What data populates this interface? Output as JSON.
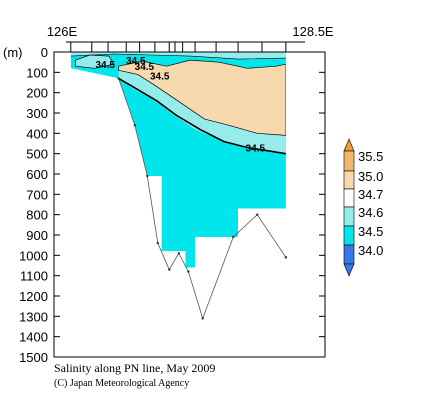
{
  "chart_data": {
    "type": "contour-section",
    "title": "Salinity along PN line, May 2009",
    "credit": "(C) Japan Meteorological Agency",
    "x_axis": {
      "ticks": [
        "126E",
        "128.5E"
      ],
      "xlim": [
        126.0,
        128.5
      ]
    },
    "y_axis": {
      "unit_label": "(m)",
      "ylim": [
        0,
        1500
      ],
      "inverted": true,
      "ticks": [
        0,
        100,
        200,
        300,
        400,
        500,
        600,
        700,
        800,
        900,
        1000,
        1100,
        1200,
        1300,
        1400,
        1500
      ]
    },
    "station_longitudes": [
      126.05,
      126.27,
      126.44,
      126.63,
      126.77,
      126.93,
      127.08,
      127.14,
      127.22,
      127.35,
      127.57,
      127.8,
      128.05,
      128.3
    ],
    "contour_labels": [
      {
        "text": "34.5",
        "lon": 126.41,
        "depth": 60
      },
      {
        "text": "34.5",
        "lon": 126.73,
        "depth": 40
      },
      {
        "text": "34.5",
        "lon": 126.82,
        "depth": 70
      },
      {
        "text": "34.5",
        "lon": 126.98,
        "depth": 115
      },
      {
        "text": "34.5",
        "lon": 127.98,
        "depth": 470
      }
    ],
    "colorbar": {
      "bins": [
        {
          "range": [
            35.5,
            36.0
          ],
          "color": "#f09d3a"
        },
        {
          "range": [
            35.0,
            35.5
          ],
          "color": "#f2b96d"
        },
        {
          "range": [
            34.7,
            35.0
          ],
          "color": "#f7d9ad"
        },
        {
          "range": [
            34.6,
            34.7
          ],
          "color": "#ffffff"
        },
        {
          "range": [
            34.5,
            34.6
          ],
          "color": "#96ecea"
        },
        {
          "range": [
            34.0,
            34.5
          ],
          "color": "#00e6ea"
        },
        {
          "range": [
            33.0,
            34.0
          ],
          "color": "#3b78e7"
        }
      ],
      "labels": [
        "35.5",
        "35.0",
        "34.7",
        "34.6",
        "34.5",
        "34.0"
      ]
    },
    "bottom_profile": [
      {
        "lon": 126.55,
        "depth": 130
      },
      {
        "lon": 126.72,
        "depth": 360
      },
      {
        "lon": 126.85,
        "depth": 610
      },
      {
        "lon": 126.96,
        "depth": 940
      },
      {
        "lon": 127.08,
        "depth": 1070
      },
      {
        "lon": 127.18,
        "depth": 990
      },
      {
        "lon": 127.28,
        "depth": 1080
      },
      {
        "lon": 127.43,
        "depth": 1310
      },
      {
        "lon": 127.75,
        "depth": 910
      },
      {
        "lon": 128.0,
        "depth": 800
      },
      {
        "lon": 128.3,
        "depth": 1010
      }
    ],
    "high_salinity_core": [
      {
        "lon": 126.55,
        "depth": 70
      },
      {
        "lon": 126.8,
        "depth": 45
      },
      {
        "lon": 127.05,
        "depth": 70
      },
      {
        "lon": 127.3,
        "depth": 40
      },
      {
        "lon": 127.6,
        "depth": 50
      },
      {
        "lon": 127.9,
        "depth": 80
      },
      {
        "lon": 128.2,
        "depth": 70
      },
      {
        "lon": 128.3,
        "depth": 60
      },
      {
        "lon": 128.3,
        "depth": 410
      },
      {
        "lon": 128.0,
        "depth": 400
      },
      {
        "lon": 127.7,
        "depth": 360
      },
      {
        "lon": 127.45,
        "depth": 330
      },
      {
        "lon": 127.2,
        "depth": 250
      },
      {
        "lon": 126.95,
        "depth": 170
      },
      {
        "lon": 126.75,
        "depth": 110
      },
      {
        "lon": 126.55,
        "depth": 90
      }
    ],
    "midlayer_34_6": [
      {
        "lon": 126.55,
        "depth": 130
      },
      {
        "lon": 126.7,
        "depth": 180
      },
      {
        "lon": 126.9,
        "depth": 230
      },
      {
        "lon": 127.1,
        "depth": 300
      },
      {
        "lon": 127.35,
        "depth": 380
      },
      {
        "lon": 127.65,
        "depth": 440
      },
      {
        "lon": 127.95,
        "depth": 480
      },
      {
        "lon": 128.3,
        "depth": 500
      },
      {
        "lon": 128.3,
        "depth": 410
      },
      {
        "lon": 128.0,
        "depth": 400
      },
      {
        "lon": 127.7,
        "depth": 360
      },
      {
        "lon": 127.45,
        "depth": 330
      },
      {
        "lon": 127.2,
        "depth": 250
      },
      {
        "lon": 126.95,
        "depth": 170
      },
      {
        "lon": 126.75,
        "depth": 110
      },
      {
        "lon": 126.55,
        "depth": 90
      }
    ],
    "contour_34_5": [
      {
        "lon": 126.55,
        "depth": 130
      },
      {
        "lon": 126.75,
        "depth": 185
      },
      {
        "lon": 126.95,
        "depth": 240
      },
      {
        "lon": 127.15,
        "depth": 310
      },
      {
        "lon": 127.4,
        "depth": 380
      },
      {
        "lon": 127.65,
        "depth": 440
      },
      {
        "lon": 127.9,
        "depth": 470
      },
      {
        "lon": 128.3,
        "depth": 500
      }
    ],
    "shelf_core": [
      {
        "lon": 126.1,
        "depth": 40
      },
      {
        "lon": 126.25,
        "depth": 15
      },
      {
        "lon": 126.45,
        "depth": 20
      },
      {
        "lon": 126.5,
        "depth": 60
      },
      {
        "lon": 126.3,
        "depth": 80
      },
      {
        "lon": 126.1,
        "depth": 70
      }
    ],
    "upper_fill_34_6": [
      {
        "lon": 126.05,
        "depth": 0
      },
      {
        "lon": 128.3,
        "depth": 0
      },
      {
        "lon": 128.3,
        "depth": 30
      },
      {
        "lon": 127.8,
        "depth": 35
      },
      {
        "lon": 127.3,
        "depth": 20
      },
      {
        "lon": 126.9,
        "depth": 15
      },
      {
        "lon": 126.5,
        "depth": 10
      },
      {
        "lon": 126.05,
        "depth": 20
      }
    ],
    "deep_water_mask": [
      {
        "lon": 126.55,
        "depth": 130
      },
      {
        "lon": 126.72,
        "depth": 360
      },
      {
        "lon": 126.85,
        "depth": 610
      },
      {
        "lon": 126.96,
        "depth": 940
      },
      {
        "lon": 127.08,
        "depth": 1070
      },
      {
        "lon": 127.18,
        "depth": 990
      },
      {
        "lon": 127.28,
        "depth": 1080
      },
      {
        "lon": 127.43,
        "depth": 1310
      },
      {
        "lon": 127.75,
        "depth": 910
      },
      {
        "lon": 128.0,
        "depth": 800
      },
      {
        "lon": 128.3,
        "depth": 1010
      }
    ],
    "cyan_extent": [
      {
        "lon": 126.05,
        "depth": 0
      },
      {
        "lon": 128.3,
        "depth": 0
      },
      {
        "lon": 128.3,
        "depth": 770
      },
      {
        "lon": 127.8,
        "depth": 770
      },
      {
        "lon": 127.8,
        "depth": 910
      },
      {
        "lon": 127.35,
        "depth": 910
      },
      {
        "lon": 127.35,
        "depth": 1060
      },
      {
        "lon": 127.25,
        "depth": 1060
      },
      {
        "lon": 127.25,
        "depth": 980
      },
      {
        "lon": 127.0,
        "depth": 980
      },
      {
        "lon": 127.0,
        "depth": 610
      },
      {
        "lon": 126.85,
        "depth": 610
      },
      {
        "lon": 126.72,
        "depth": 360
      },
      {
        "lon": 126.55,
        "depth": 130
      },
      {
        "lon": 126.05,
        "depth": 80
      }
    ]
  }
}
